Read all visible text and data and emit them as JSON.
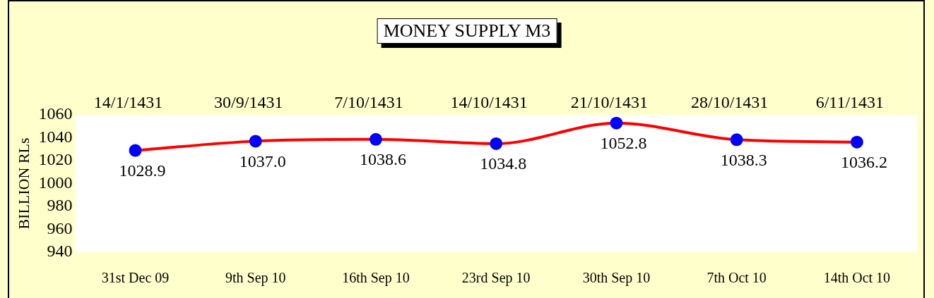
{
  "chart_data": {
    "type": "line",
    "title": "MONEY SUPPLY M3",
    "ylabel": "BILLION RLs",
    "categories": [
      "31st Dec 09",
      "9th Sep 10",
      "16th Sep 10",
      "23rd Sep 10",
      "30th Sep 10",
      "7th Oct 10",
      "14th Oct 10"
    ],
    "series": [
      {
        "color": "#ff0000",
        "colors": [
          "#0000ff",
          "#0000ff",
          "#0000ff",
          "#0000ff",
          "#0000ff",
          "#0000ff",
          "#0000ff"
        ],
        "values": [
          1028.9,
          1037.0,
          1038.6,
          1034.8,
          1052.8,
          1038.3,
          1036.2
        ]
      }
    ],
    "value_labels": [
      "1028.9",
      "1037.0",
      "1038.6",
      "1034.8",
      "1052.8",
      "1038.3",
      "1036.2"
    ],
    "annotations": [
      "14/1/1431",
      "30/9/1431",
      "7/10/1431",
      "14/10/1431",
      "21/10/1431",
      "28/10/1431",
      "6/11/1431"
    ],
    "ylim": [
      940,
      1060
    ],
    "yticks": [
      940,
      960,
      980,
      1000,
      1020,
      1040,
      1060
    ],
    "grid": false,
    "legend": false,
    "marker": "circle",
    "line_style": "solid"
  }
}
